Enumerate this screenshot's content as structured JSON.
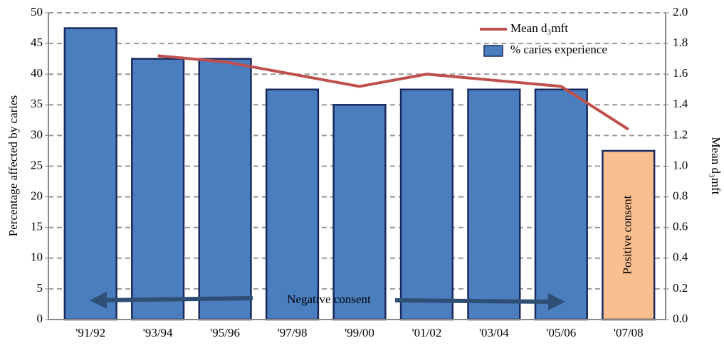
{
  "chart_data": {
    "type": "bar",
    "categories": [
      "'91/92",
      "'93/94",
      "'95/96",
      "'97/98",
      "'99/00",
      "'01/02",
      "'03/04",
      "'05/06",
      "'07/08"
    ],
    "series": [
      {
        "name": "% caries experience",
        "type": "bar",
        "color": "#4a7ebf",
        "colors": [
          "#4a7ebf",
          "#4a7ebf",
          "#4a7ebf",
          "#4a7ebf",
          "#4a7ebf",
          "#4a7ebf",
          "#4a7ebf",
          "#4a7ebf",
          "#fbbf8f"
        ],
        "values": [
          47.5,
          42.5,
          42.5,
          37.5,
          35,
          37.5,
          37.5,
          37.5,
          27.5
        ]
      },
      {
        "name": "Mean d₃mft",
        "type": "line",
        "axis": "y2",
        "color": "#c0504d",
        "values": [
          null,
          1.72,
          1.68,
          1.6,
          1.52,
          1.6,
          1.56,
          1.52,
          1.24
        ]
      }
    ],
    "ylabel": "Percentage affected by caries",
    "y2label": "Mean d₃mft",
    "ylim": [
      0,
      50
    ],
    "yticks": [
      0,
      5,
      10,
      15,
      20,
      25,
      30,
      35,
      40,
      45,
      50
    ],
    "y2lim": [
      0,
      2
    ],
    "y2ticks": [
      {
        "value": 0,
        "label": "0.0"
      },
      0.2,
      0.4,
      0.6,
      0.8,
      {
        "value": 1,
        "label": "1.0"
      },
      1.2,
      1.4,
      1.6,
      1.8,
      {
        "value": 2,
        "label": "2.0"
      }
    ],
    "grid": true,
    "legend": "upper right",
    "annotations": [
      "Negative consent",
      "Positive consent"
    ]
  }
}
